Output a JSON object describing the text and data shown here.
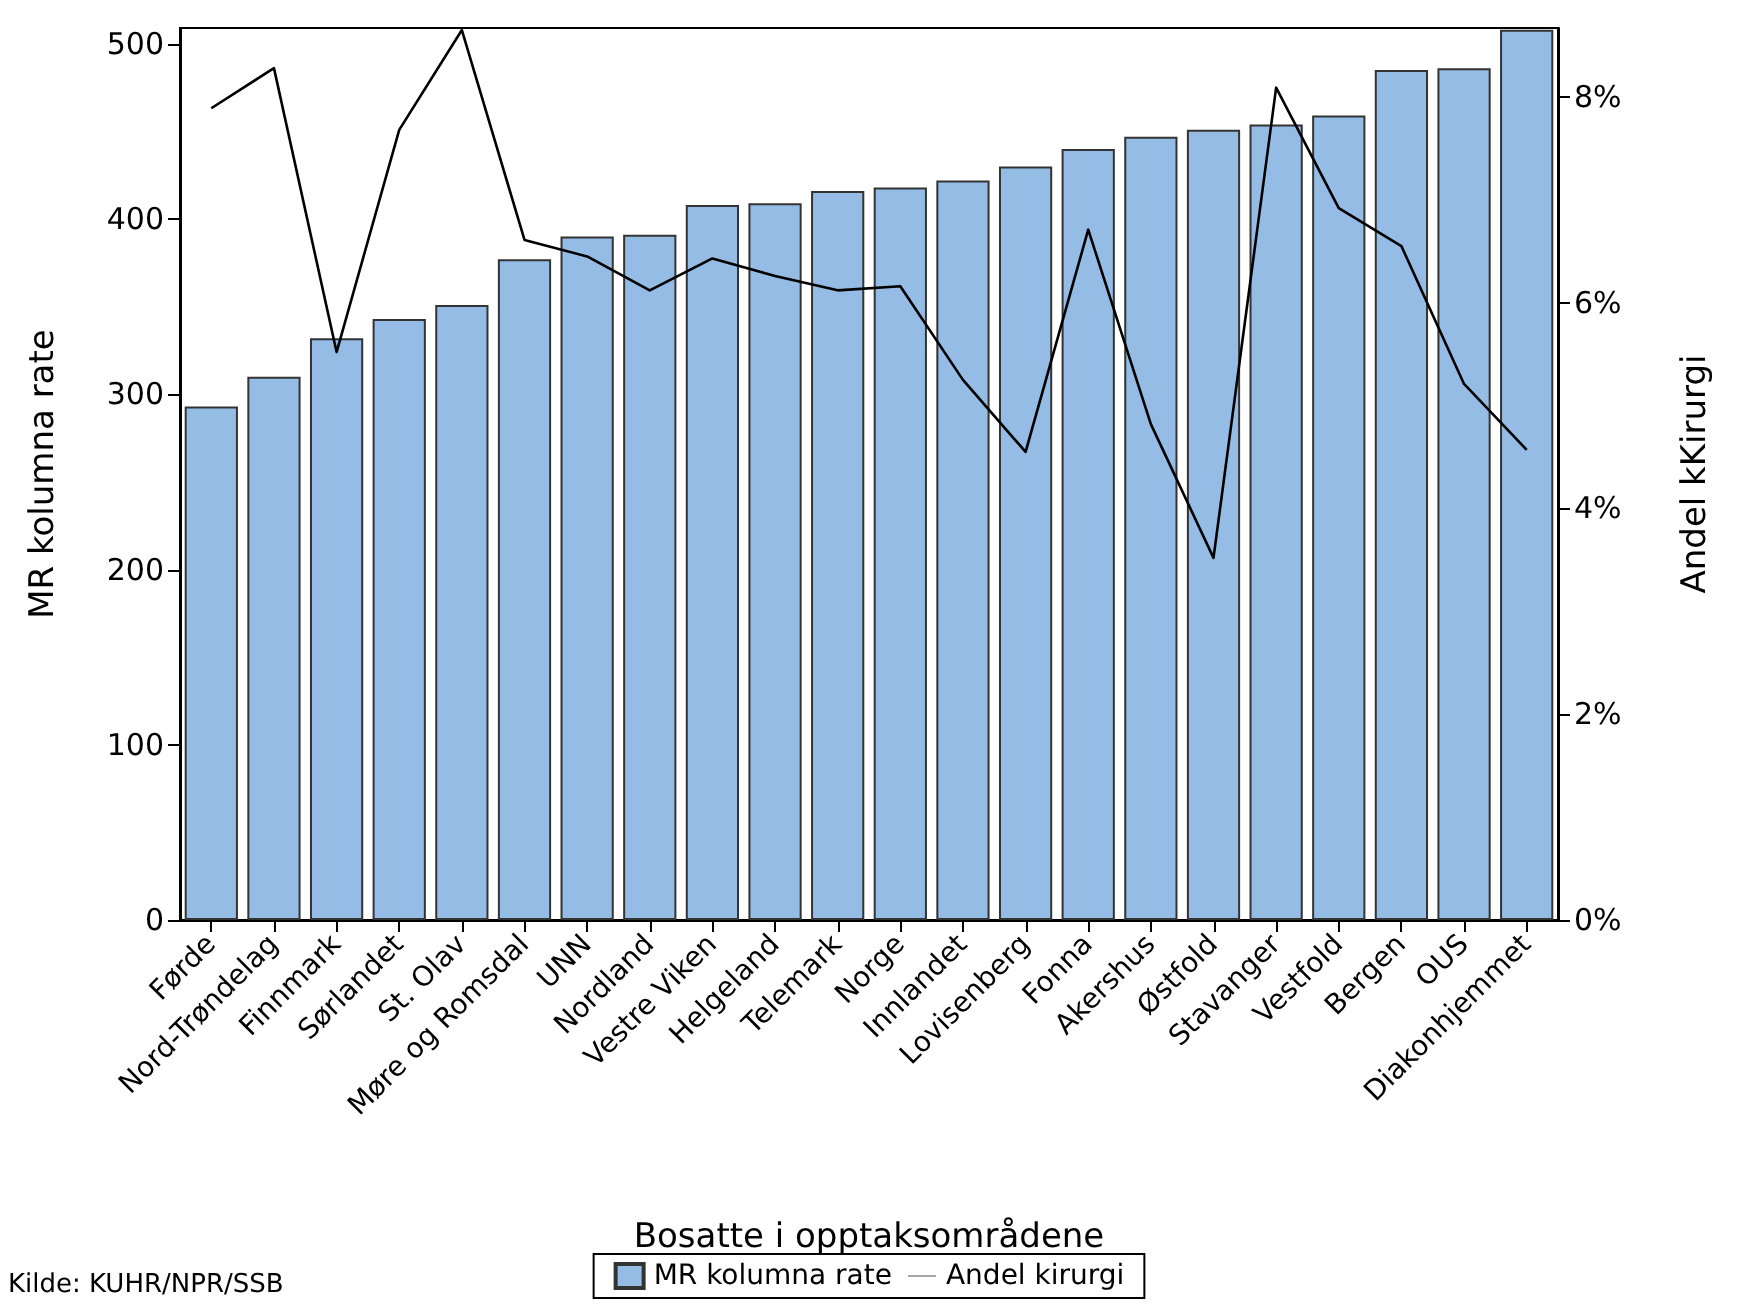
{
  "chart_data": {
    "type": "bar",
    "xlabel": "Bosatte i opptaksområdene",
    "ylabel": "MR kolumna rate",
    "y2label": "Andel kKirurgi",
    "categories": [
      "Førde",
      "Nord-Trøndelag",
      "Finnmark",
      "Sørlandet",
      "St. Olav",
      "Møre og Romsdal",
      "UNN",
      "Nordland",
      "Vestre Viken",
      "Helgeland",
      "Telemark",
      "Norge",
      "Innlandet",
      "Lovisenberg",
      "Fonna",
      "Akershus",
      "Østfold",
      "Stavanger",
      "Vestfold",
      "Bergen",
      "OUS",
      "Diakonhjemmet"
    ],
    "series": [
      {
        "name": "MR kolumna rate",
        "color": "#95bce5",
        "values": [
          293,
          310,
          332,
          343,
          351,
          377,
          390,
          391,
          408,
          409,
          416,
          418,
          422,
          430,
          440,
          447,
          451,
          454,
          459,
          485,
          486,
          508
        ]
      },
      {
        "name": "Andel kirurgi",
        "type": "line",
        "axis": "y2",
        "color": "#000000",
        "values": [
          7.89,
          8.28,
          5.52,
          7.68,
          8.65,
          6.61,
          6.45,
          6.12,
          6.43,
          6.26,
          6.12,
          6.16,
          5.25,
          4.55,
          6.71,
          4.82,
          3.52,
          8.09,
          6.92,
          6.55,
          5.21,
          4.57
        ]
      }
    ],
    "ylim": [
      0,
      509
    ],
    "yticks": [
      0,
      100,
      200,
      300,
      400,
      500
    ],
    "y2lim": [
      0,
      8.67
    ],
    "y2ticks": [
      {
        "value": 0,
        "label": "0%"
      },
      {
        "value": 2,
        "label": "2%"
      },
      {
        "value": 4,
        "label": "4%"
      },
      {
        "value": 6,
        "label": "6%"
      },
      {
        "value": 8,
        "label": "8%"
      }
    ],
    "annotations": [
      "Kilde: KUHR/NPR/SSB"
    ],
    "legend": "bottom",
    "grid": false,
    "marker": "none",
    "line_style": "solid"
  }
}
